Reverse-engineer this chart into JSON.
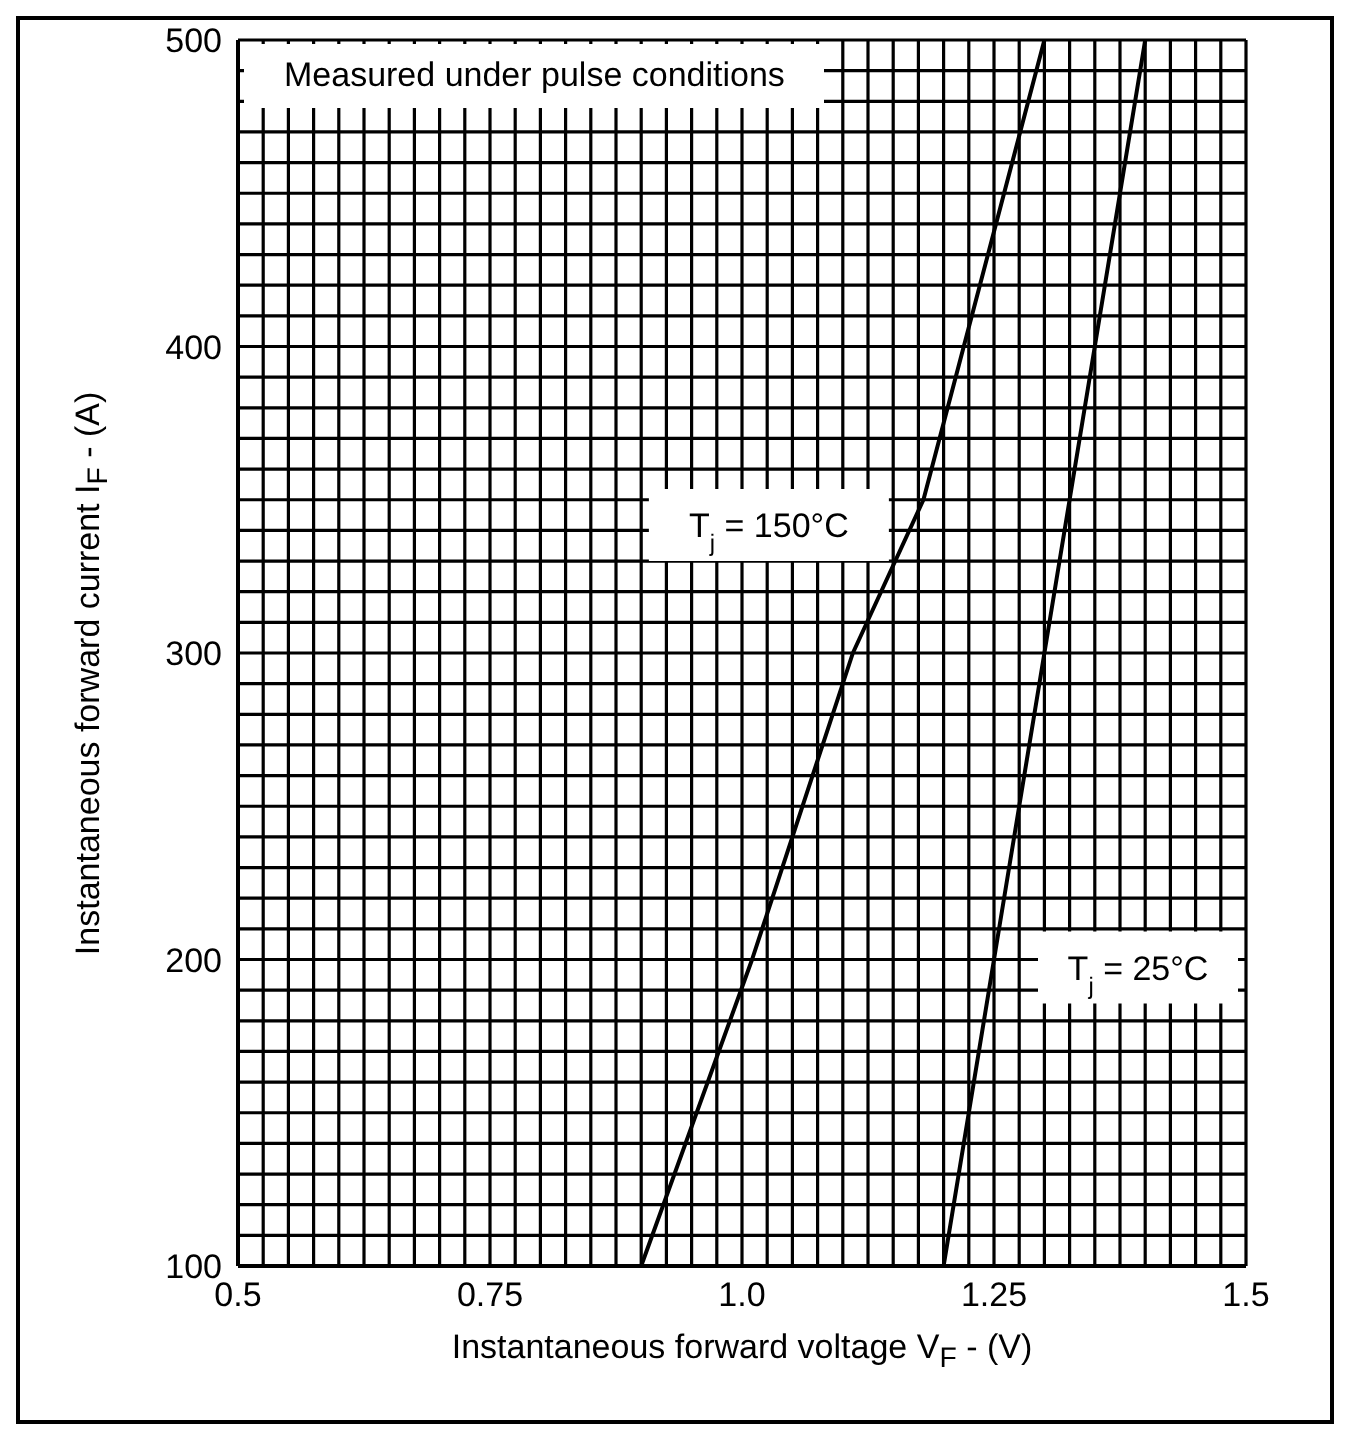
{
  "chart_data": {
    "type": "line",
    "xlabel": "Instantaneous forward voltage V$_{F}$ - (V)",
    "ylabel": "Instantaneous forward current I$_{F}$ - (A)",
    "annotations": [
      "Measured under pulse conditions"
    ],
    "series": [
      {
        "name": "T$_{j}$ = 150°C",
        "color": "#000000",
        "x": [
          0.9,
          1.01,
          1.11,
          1.18,
          1.22,
          1.3
        ],
        "values": [
          100,
          200,
          300,
          350,
          400,
          500
        ]
      },
      {
        "name": "T$_{j}$ = 25°C",
        "color": "#000000",
        "x": [
          1.2,
          1.25,
          1.3,
          1.35,
          1.4
        ],
        "values": [
          100,
          200,
          300,
          400,
          500
        ]
      }
    ],
    "xlim": [
      0.5,
      1.5
    ],
    "ylim": [
      100,
      500
    ],
    "xticks": [
      0.5,
      {
        "value": 0.525,
        "label": null
      },
      {
        "value": 0.55,
        "label": null
      },
      {
        "value": 0.575,
        "label": null
      },
      {
        "value": 0.6,
        "label": null
      },
      {
        "value": 0.625,
        "label": null
      },
      {
        "value": 0.65,
        "label": null
      },
      {
        "value": 0.675,
        "label": null
      },
      {
        "value": 0.7,
        "label": null
      },
      {
        "value": 0.725,
        "label": null
      },
      0.75,
      {
        "value": 0.775,
        "label": null
      },
      {
        "value": 0.8,
        "label": null
      },
      {
        "value": 0.825,
        "label": null
      },
      {
        "value": 0.85,
        "label": null
      },
      {
        "value": 0.875,
        "label": null
      },
      {
        "value": 0.9,
        "label": null
      },
      {
        "value": 0.925,
        "label": null
      },
      {
        "value": 0.95,
        "label": null
      },
      {
        "value": 0.975,
        "label": null
      },
      {
        "value": 1,
        "label": "1.0"
      },
      {
        "value": 1.025,
        "label": null
      },
      {
        "value": 1.05,
        "label": null
      },
      {
        "value": 1.075,
        "label": null
      },
      {
        "value": 1.1,
        "label": null
      },
      {
        "value": 1.125,
        "label": null
      },
      {
        "value": 1.15,
        "label": null
      },
      {
        "value": 1.175,
        "label": null
      },
      {
        "value": 1.2,
        "label": null
      },
      {
        "value": 1.225,
        "label": null
      },
      1.25,
      {
        "value": 1.275,
        "label": null
      },
      {
        "value": 1.3,
        "label": null
      },
      {
        "value": 1.325,
        "label": null
      },
      {
        "value": 1.35,
        "label": null
      },
      {
        "value": 1.375,
        "label": null
      },
      {
        "value": 1.4,
        "label": null
      },
      {
        "value": 1.425,
        "label": null
      },
      {
        "value": 1.45,
        "label": null
      },
      {
        "value": 1.475,
        "label": null
      },
      1.5
    ],
    "yticks": [
      100,
      {
        "value": 110,
        "label": null
      },
      {
        "value": 120,
        "label": null
      },
      {
        "value": 130,
        "label": null
      },
      {
        "value": 140,
        "label": null
      },
      {
        "value": 150,
        "label": null
      },
      {
        "value": 160,
        "label": null
      },
      {
        "value": 170,
        "label": null
      },
      {
        "value": 180,
        "label": null
      },
      {
        "value": 190,
        "label": null
      },
      200,
      {
        "value": 210,
        "label": null
      },
      {
        "value": 220,
        "label": null
      },
      {
        "value": 230,
        "label": null
      },
      {
        "value": 240,
        "label": null
      },
      {
        "value": 250,
        "label": null
      },
      {
        "value": 260,
        "label": null
      },
      {
        "value": 270,
        "label": null
      },
      {
        "value": 280,
        "label": null
      },
      {
        "value": 290,
        "label": null
      },
      300,
      {
        "value": 310,
        "label": null
      },
      {
        "value": 320,
        "label": null
      },
      {
        "value": 330,
        "label": null
      },
      {
        "value": 340,
        "label": null
      },
      {
        "value": 350,
        "label": null
      },
      {
        "value": 360,
        "label": null
      },
      {
        "value": 370,
        "label": null
      },
      {
        "value": 380,
        "label": null
      },
      {
        "value": 390,
        "label": null
      },
      400,
      {
        "value": 410,
        "label": null
      },
      {
        "value": 420,
        "label": null
      },
      {
        "value": 430,
        "label": null
      },
      {
        "value": 440,
        "label": null
      },
      {
        "value": 450,
        "label": null
      },
      {
        "value": 460,
        "label": null
      },
      {
        "value": 470,
        "label": null
      },
      {
        "value": 480,
        "label": null
      },
      {
        "value": 490,
        "label": null
      },
      500
    ],
    "grid": true,
    "marker": "none",
    "line_style": "solid"
  }
}
